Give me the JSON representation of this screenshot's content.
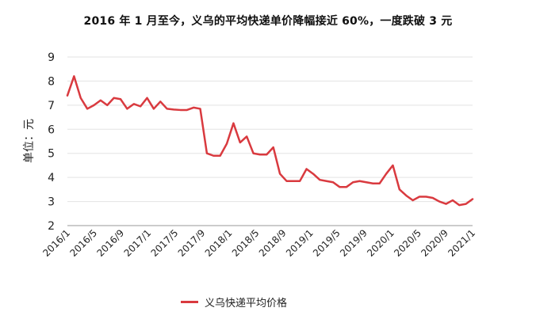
{
  "chart_data": {
    "type": "line",
    "title": "2016 年 1 月至今，义乌的平均快递单价降幅接近 60%，一度跌破 3 元",
    "ylabel": "单位：元",
    "xlabel": "",
    "ylim": [
      2,
      9
    ],
    "yticks": [
      "2",
      "3",
      "4",
      "5",
      "6",
      "7",
      "8",
      "9"
    ],
    "xticks": [
      "2016/1",
      "2016/5",
      "2016/9",
      "2017/1",
      "2017/5",
      "2017/9",
      "2018/1",
      "2018/5",
      "2018/9",
      "2019/1",
      "2019/5",
      "2019/9",
      "2020/1",
      "2020/5",
      "2020/9",
      "2021/1"
    ],
    "grid": true,
    "legend_position": "bottom",
    "color": "#d93a3f",
    "series": [
      {
        "name": "义乌快递平均价格",
        "values": [
          7.4,
          8.2,
          7.3,
          6.85,
          7.0,
          7.2,
          7.0,
          7.3,
          7.25,
          6.85,
          7.05,
          6.95,
          7.3,
          6.85,
          7.15,
          6.85,
          6.82,
          6.8,
          6.8,
          6.9,
          6.85,
          5.0,
          4.9,
          4.9,
          5.4,
          6.25,
          5.45,
          5.7,
          5.0,
          4.95,
          4.95,
          5.25,
          4.15,
          3.85,
          3.85,
          3.85,
          4.35,
          4.15,
          3.9,
          3.85,
          3.8,
          3.6,
          3.6,
          3.8,
          3.85,
          3.8,
          3.75,
          3.75,
          4.15,
          4.5,
          3.5,
          3.25,
          3.05,
          3.2,
          3.2,
          3.15,
          3.0,
          2.9,
          3.05,
          2.85,
          2.9,
          3.1
        ]
      }
    ]
  }
}
